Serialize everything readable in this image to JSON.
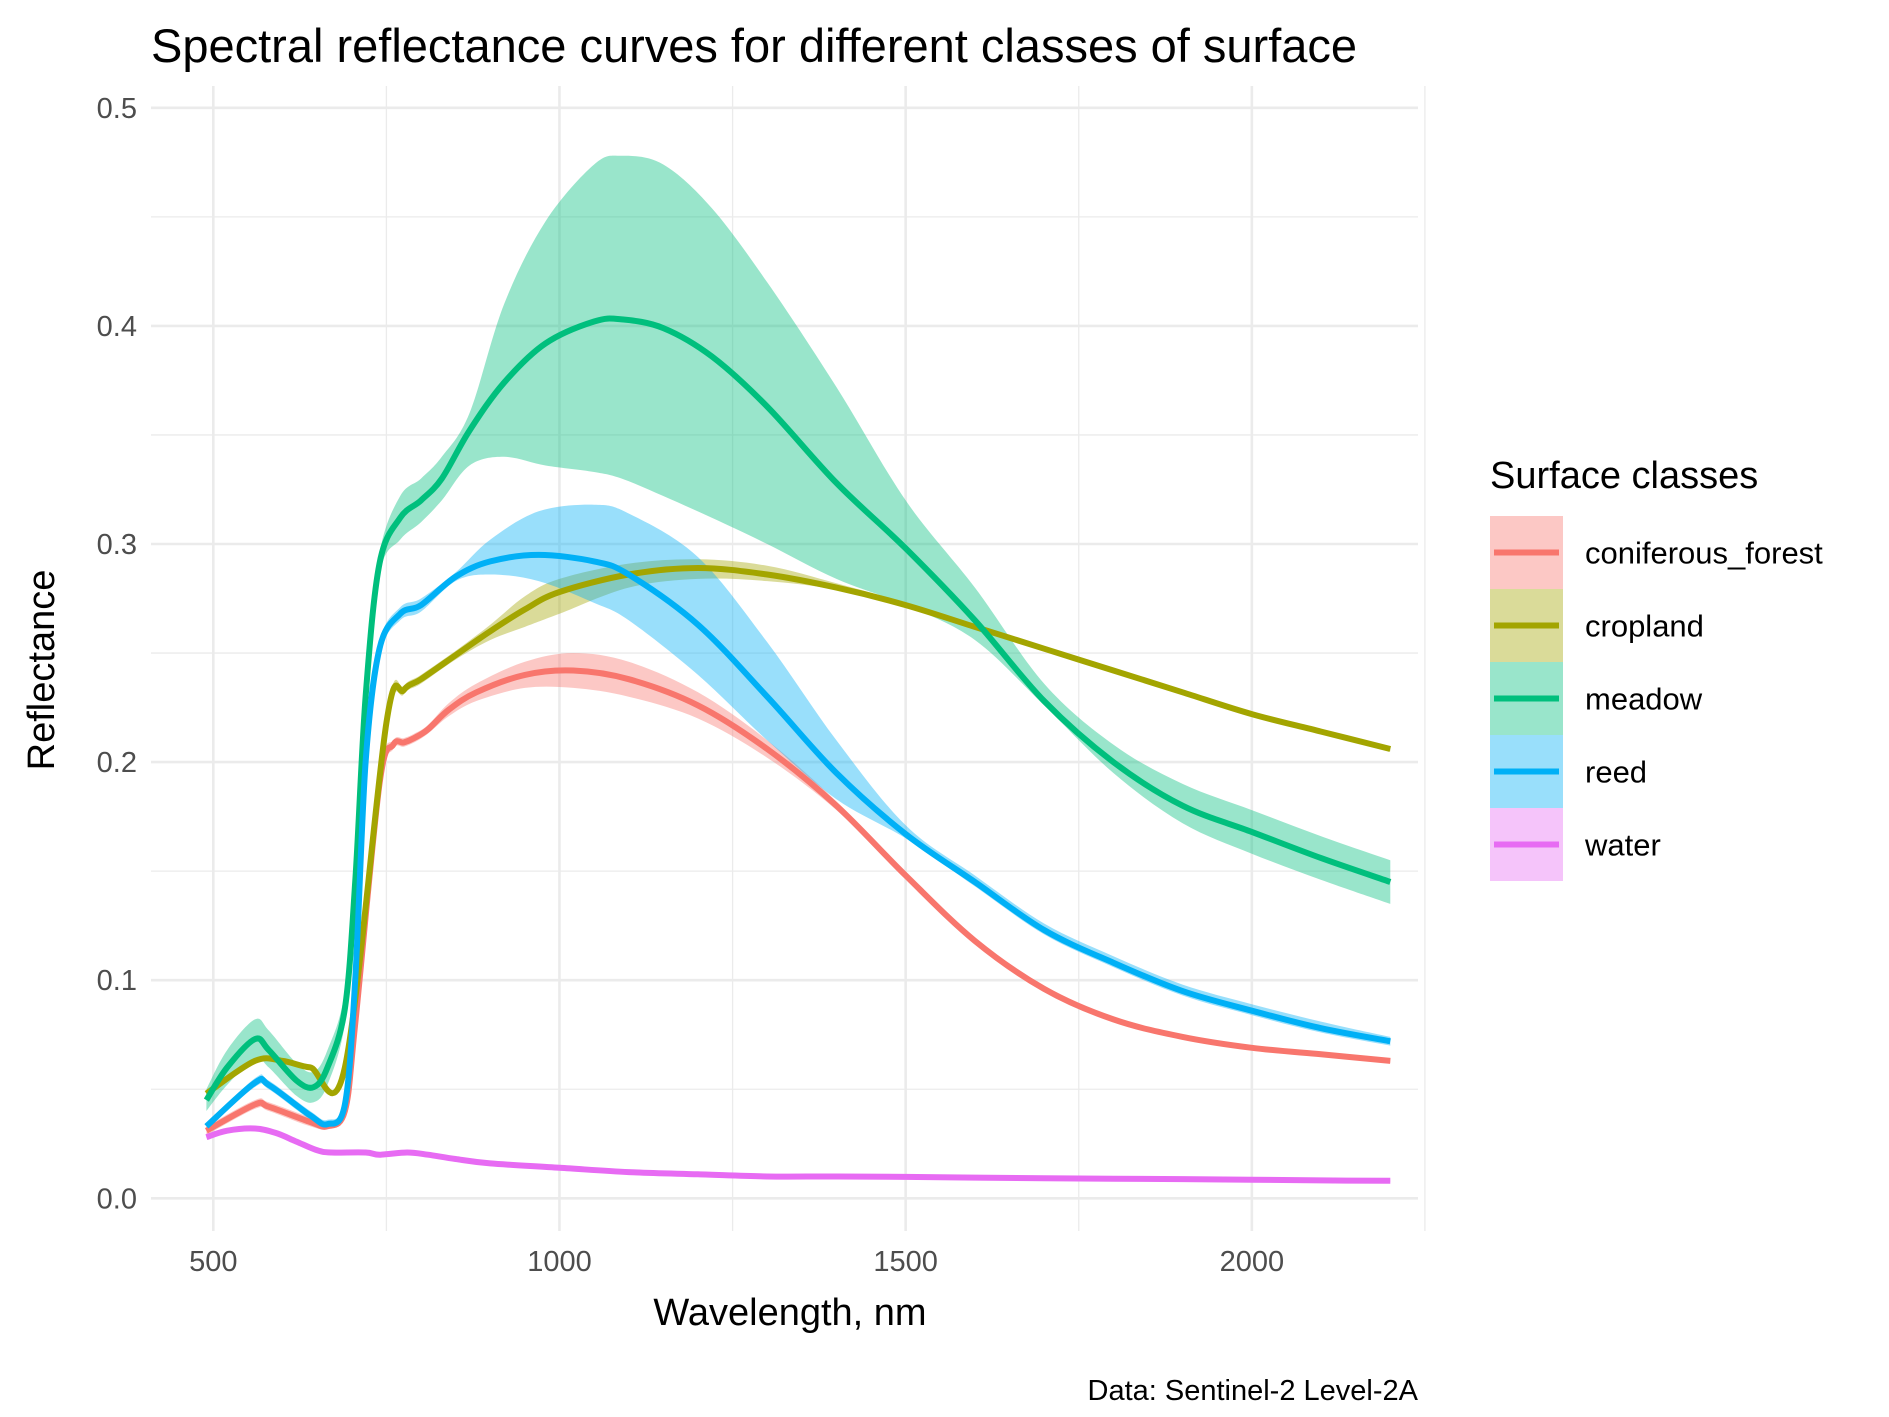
{
  "chart_data": {
    "type": "line",
    "title": "Spectral reflectance curves for different classes of surface",
    "xlabel": "Wavelength, nm",
    "ylabel": "Reflectance",
    "caption": "Data: Sentinel-2 Level-2A",
    "legend_title": "Surface classes",
    "legend_position": "right",
    "grid": true,
    "xlim": [
      410,
      2240
    ],
    "ylim": [
      -0.015,
      0.51
    ],
    "x_ticks": [
      500,
      1000,
      1500,
      2000
    ],
    "x_minor_ticks": [
      750,
      1250,
      1750,
      2250
    ],
    "y_ticks": [
      0.0,
      0.1,
      0.2,
      0.3,
      0.4,
      0.5
    ],
    "y_minor_ticks": [
      0.05,
      0.15,
      0.25,
      0.35,
      0.45
    ],
    "x_tick_labels": [
      "500",
      "1000",
      "1500",
      "2000"
    ],
    "y_tick_labels": [
      "0.0",
      "0.1",
      "0.2",
      "0.3",
      "0.4",
      "0.5"
    ],
    "series": [
      {
        "name": "coniferous_forest",
        "color": "#F8766D",
        "x": [
          490,
          560,
          580,
          640,
          665,
          690,
          705,
          740,
          760,
          775,
          790,
          810,
          840,
          880,
          950,
          1020,
          1100,
          1200,
          1300,
          1400,
          1500,
          1600,
          1700,
          1800,
          1900,
          2000,
          2100,
          2200
        ],
        "y": [
          0.031,
          0.043,
          0.042,
          0.035,
          0.033,
          0.04,
          0.08,
          0.19,
          0.208,
          0.209,
          0.211,
          0.215,
          0.224,
          0.232,
          0.24,
          0.242,
          0.238,
          0.226,
          0.206,
          0.18,
          0.148,
          0.118,
          0.096,
          0.082,
          0.074,
          0.069,
          0.066,
          0.063
        ],
        "lower": [
          0.029,
          0.041,
          0.04,
          0.033,
          0.032,
          0.039,
          0.078,
          0.187,
          0.206,
          0.207,
          0.209,
          0.213,
          0.221,
          0.228,
          0.234,
          0.234,
          0.23,
          0.22,
          0.202,
          0.178,
          0.147,
          0.117,
          0.095,
          0.081,
          0.073,
          0.068,
          0.065,
          0.062
        ],
        "upper": [
          0.033,
          0.045,
          0.044,
          0.037,
          0.034,
          0.041,
          0.082,
          0.193,
          0.21,
          0.211,
          0.213,
          0.217,
          0.227,
          0.236,
          0.246,
          0.25,
          0.246,
          0.232,
          0.21,
          0.182,
          0.149,
          0.119,
          0.097,
          0.083,
          0.075,
          0.07,
          0.067,
          0.064
        ]
      },
      {
        "name": "cropland",
        "color": "#A3A500",
        "x": [
          490,
          560,
          600,
          640,
          690,
          750,
          775,
          800,
          850,
          900,
          950,
          1000,
          1100,
          1200,
          1300,
          1400,
          1500,
          1600,
          1700,
          1800,
          1900,
          2000,
          2100,
          2200
        ],
        "y": [
          0.048,
          0.063,
          0.063,
          0.06,
          0.06,
          0.218,
          0.233,
          0.238,
          0.249,
          0.26,
          0.27,
          0.278,
          0.286,
          0.289,
          0.286,
          0.28,
          0.272,
          0.262,
          0.252,
          0.242,
          0.232,
          0.222,
          0.214,
          0.206
        ],
        "lower": [
          0.047,
          0.062,
          0.062,
          0.059,
          0.059,
          0.215,
          0.231,
          0.236,
          0.247,
          0.256,
          0.262,
          0.268,
          0.28,
          0.284,
          0.283,
          0.279,
          0.271,
          0.261,
          0.251,
          0.241,
          0.231,
          0.221,
          0.213,
          0.205
        ],
        "upper": [
          0.049,
          0.064,
          0.064,
          0.061,
          0.061,
          0.221,
          0.235,
          0.24,
          0.251,
          0.263,
          0.276,
          0.284,
          0.291,
          0.293,
          0.29,
          0.282,
          0.273,
          0.263,
          0.253,
          0.243,
          0.233,
          0.223,
          0.215,
          0.207
        ]
      },
      {
        "name": "meadow",
        "color": "#00BF7D",
        "x": [
          490,
          520,
          560,
          580,
          620,
          645,
          665,
          690,
          705,
          720,
          740,
          770,
          800,
          830,
          870,
          920,
          980,
          1050,
          1090,
          1150,
          1220,
          1300,
          1400,
          1500,
          1600,
          1700,
          1800,
          1900,
          2000,
          2100,
          2200
        ],
        "y": [
          0.045,
          0.06,
          0.073,
          0.068,
          0.054,
          0.051,
          0.06,
          0.087,
          0.145,
          0.23,
          0.291,
          0.312,
          0.32,
          0.33,
          0.352,
          0.374,
          0.392,
          0.402,
          0.403,
          0.399,
          0.386,
          0.363,
          0.328,
          0.298,
          0.265,
          0.228,
          0.2,
          0.18,
          0.168,
          0.156,
          0.145
        ],
        "lower": [
          0.04,
          0.052,
          0.064,
          0.06,
          0.047,
          0.044,
          0.052,
          0.08,
          0.135,
          0.22,
          0.286,
          0.302,
          0.31,
          0.32,
          0.336,
          0.34,
          0.336,
          0.333,
          0.33,
          0.322,
          0.312,
          0.3,
          0.284,
          0.272,
          0.256,
          0.226,
          0.195,
          0.172,
          0.158,
          0.146,
          0.135
        ],
        "upper": [
          0.05,
          0.068,
          0.082,
          0.077,
          0.062,
          0.058,
          0.068,
          0.095,
          0.155,
          0.24,
          0.296,
          0.322,
          0.33,
          0.34,
          0.36,
          0.41,
          0.448,
          0.474,
          0.478,
          0.474,
          0.454,
          0.42,
          0.372,
          0.32,
          0.28,
          0.236,
          0.208,
          0.19,
          0.178,
          0.166,
          0.155
        ]
      },
      {
        "name": "reed",
        "color": "#00B0F6",
        "x": [
          490,
          560,
          580,
          640,
          665,
          690,
          705,
          720,
          740,
          770,
          800,
          850,
          900,
          970,
          1050,
          1100,
          1200,
          1300,
          1400,
          1500,
          1600,
          1700,
          1800,
          1900,
          2000,
          2100,
          2200
        ],
        "y": [
          0.033,
          0.053,
          0.052,
          0.038,
          0.034,
          0.043,
          0.1,
          0.2,
          0.252,
          0.268,
          0.272,
          0.285,
          0.292,
          0.295,
          0.292,
          0.286,
          0.263,
          0.23,
          0.195,
          0.167,
          0.145,
          0.123,
          0.108,
          0.095,
          0.086,
          0.078,
          0.072
        ],
        "lower": [
          0.032,
          0.051,
          0.05,
          0.036,
          0.032,
          0.041,
          0.097,
          0.196,
          0.249,
          0.265,
          0.269,
          0.283,
          0.286,
          0.283,
          0.273,
          0.265,
          0.24,
          0.21,
          0.183,
          0.165,
          0.143,
          0.121,
          0.106,
          0.093,
          0.084,
          0.076,
          0.07
        ],
        "upper": [
          0.034,
          0.055,
          0.054,
          0.04,
          0.036,
          0.045,
          0.103,
          0.204,
          0.255,
          0.271,
          0.275,
          0.287,
          0.302,
          0.315,
          0.318,
          0.314,
          0.294,
          0.255,
          0.21,
          0.171,
          0.148,
          0.126,
          0.111,
          0.098,
          0.089,
          0.081,
          0.074
        ]
      },
      {
        "name": "water",
        "color": "#E76BF3",
        "x": [
          490,
          520,
          560,
          590,
          620,
          650,
          670,
          720,
          740,
          780,
          810,
          850,
          900,
          1000,
          1100,
          1200,
          1300,
          1400,
          1500,
          1600,
          1700,
          1800,
          1900,
          2000,
          2100,
          2200
        ],
        "y": [
          0.028,
          0.031,
          0.032,
          0.03,
          0.026,
          0.022,
          0.021,
          0.021,
          0.02,
          0.021,
          0.02,
          0.018,
          0.016,
          0.014,
          0.012,
          0.011,
          0.01,
          0.01,
          0.0098,
          0.0095,
          0.0092,
          0.009,
          0.0088,
          0.0085,
          0.0082,
          0.008
        ],
        "lower": [
          0.0275,
          0.0305,
          0.0315,
          0.0295,
          0.0255,
          0.0215,
          0.0205,
          0.0205,
          0.0195,
          0.0205,
          0.0195,
          0.0175,
          0.0155,
          0.0135,
          0.0115,
          0.0105,
          0.0095,
          0.0095,
          0.0093,
          0.009,
          0.0087,
          0.0085,
          0.0083,
          0.008,
          0.0077,
          0.0075
        ],
        "upper": [
          0.0285,
          0.0315,
          0.0325,
          0.0305,
          0.0265,
          0.0225,
          0.0215,
          0.0215,
          0.0205,
          0.0215,
          0.0205,
          0.0185,
          0.0165,
          0.0145,
          0.0125,
          0.0115,
          0.0105,
          0.0105,
          0.0103,
          0.01,
          0.0097,
          0.0095,
          0.0093,
          0.009,
          0.0087,
          0.0085
        ]
      }
    ]
  }
}
